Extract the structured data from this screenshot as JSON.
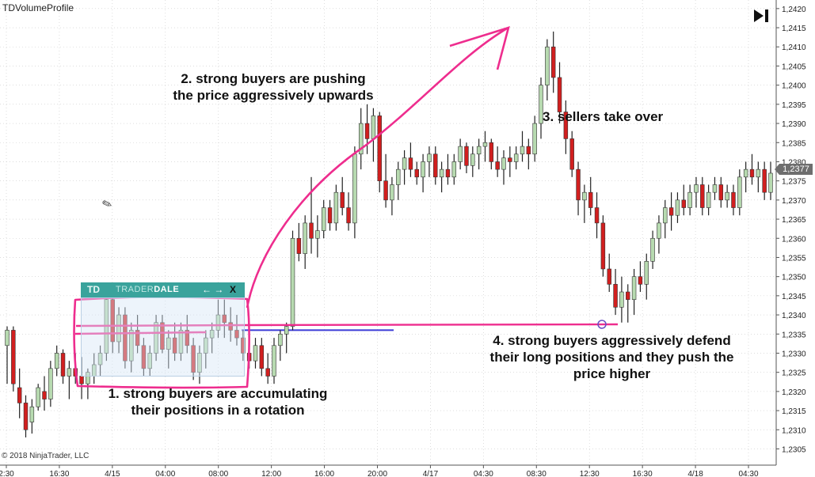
{
  "instrument": "TDVolumeProfile",
  "copyright": "© 2018 NinjaTrader, LLC",
  "current_price": "1,2377",
  "panel": {
    "logo": "TD",
    "brand_a": "TRADER",
    "brand_b": "DALE",
    "arrows": "← →",
    "close": "X"
  },
  "annotations": {
    "a1": "1. strong buyers are accumulating\ntheir positions in a rotation",
    "a2": "2. strong buyers are pushing\nthe price aggressively upwards",
    "a3": "3. sellers take over",
    "a4": "4. strong buyers aggressively defend\ntheir long positions and they push the\nprice higher"
  },
  "colors": {
    "up": "#b7dab0",
    "down": "#d11f1f",
    "wick": "#222222",
    "marker": "#ee2d8e",
    "level": "#3b3bd6",
    "grid": "#c9c9c9"
  },
  "chart_data": {
    "type": "candlestick",
    "x_tick_labels": [
      "2:30",
      "16:30",
      "4/15",
      "04:00",
      "08:00",
      "12:00",
      "16:00",
      "20:00",
      "4/17",
      "04:30",
      "08:30",
      "12:30",
      "16:30",
      "4/18",
      "04:30"
    ],
    "y_tick_labels": [
      "1,2420",
      "1,2415",
      "1,2410",
      "1,2405",
      "1,2400",
      "1,2395",
      "1,2390",
      "1,2385",
      "1,2380",
      "1,2375",
      "1,2370",
      "1,2365",
      "1,2360",
      "1,2355",
      "1,2350",
      "1,2345",
      "1,2340",
      "1,2335",
      "1,2330",
      "1,2325",
      "1,2320",
      "1,2315",
      "1,2310",
      "1,2305"
    ],
    "ylim": [
      1.2302,
      1.2421
    ],
    "grid": true,
    "current_price": 1.2377,
    "support_level": 1.2336,
    "candles": [
      [
        1.2332,
        1.2337,
        1.2322,
        1.2336
      ],
      [
        1.2336,
        1.2337,
        1.232,
        1.2322
      ],
      [
        1.2321,
        1.2326,
        1.2313,
        1.2317
      ],
      [
        1.2317,
        1.2319,
        1.2308,
        1.231
      ],
      [
        1.2312,
        1.2318,
        1.2309,
        1.2316
      ],
      [
        1.2316,
        1.2322,
        1.2315,
        1.2321
      ],
      [
        1.232,
        1.2324,
        1.2315,
        1.2318
      ],
      [
        1.2318,
        1.2328,
        1.2316,
        1.2326
      ],
      [
        1.2326,
        1.2332,
        1.2324,
        1.233
      ],
      [
        1.233,
        1.2331,
        1.2322,
        1.2324
      ],
      [
        1.2324,
        1.2328,
        1.2318,
        1.2326
      ],
      [
        1.2326,
        1.233,
        1.2322,
        1.2324
      ],
      [
        1.2324,
        1.2329,
        1.2318,
        1.2322
      ],
      [
        1.2322,
        1.2326,
        1.2318,
        1.2325
      ],
      [
        1.2324,
        1.233,
        1.2322,
        1.2327
      ],
      [
        1.2327,
        1.2332,
        1.2324,
        1.233
      ],
      [
        1.233,
        1.2346,
        1.2328,
        1.2344
      ],
      [
        1.2344,
        1.2346,
        1.233,
        1.2333
      ],
      [
        1.2333,
        1.2342,
        1.233,
        1.234
      ],
      [
        1.234,
        1.2342,
        1.2326,
        1.2328
      ],
      [
        1.2328,
        1.2338,
        1.2325,
        1.2336
      ],
      [
        1.2336,
        1.234,
        1.233,
        1.2332
      ],
      [
        1.2332,
        1.2334,
        1.2324,
        1.2326
      ],
      [
        1.2326,
        1.2332,
        1.2324,
        1.233
      ],
      [
        1.233,
        1.234,
        1.2328,
        1.2338
      ],
      [
        1.2338,
        1.234,
        1.233,
        1.2331
      ],
      [
        1.2331,
        1.2336,
        1.2326,
        1.2334
      ],
      [
        1.2334,
        1.2338,
        1.2328,
        1.233
      ],
      [
        1.233,
        1.2338,
        1.2328,
        1.2336
      ],
      [
        1.2336,
        1.234,
        1.233,
        1.2332
      ],
      [
        1.2332,
        1.2334,
        1.2323,
        1.2325
      ],
      [
        1.2325,
        1.2332,
        1.2322,
        1.233
      ],
      [
        1.233,
        1.2336,
        1.2326,
        1.2334
      ],
      [
        1.2334,
        1.2338,
        1.233,
        1.2336
      ],
      [
        1.2336,
        1.2344,
        1.2334,
        1.234
      ],
      [
        1.234,
        1.2344,
        1.2334,
        1.2338
      ],
      [
        1.2338,
        1.2342,
        1.2333,
        1.2336
      ],
      [
        1.2336,
        1.234,
        1.2332,
        1.2334
      ],
      [
        1.2334,
        1.2336,
        1.2328,
        1.233
      ],
      [
        1.233,
        1.2333,
        1.2326,
        1.2328
      ],
      [
        1.2328,
        1.2334,
        1.2326,
        1.2332
      ],
      [
        1.2332,
        1.2334,
        1.2324,
        1.2326
      ],
      [
        1.2326,
        1.233,
        1.2322,
        1.2324
      ],
      [
        1.2324,
        1.2334,
        1.2322,
        1.2332
      ],
      [
        1.2332,
        1.2336,
        1.2328,
        1.2335
      ],
      [
        1.2335,
        1.2338,
        1.233,
        1.2337
      ],
      [
        1.2337,
        1.2362,
        1.2336,
        1.236
      ],
      [
        1.236,
        1.2364,
        1.2354,
        1.2356
      ],
      [
        1.2356,
        1.2366,
        1.2352,
        1.2364
      ],
      [
        1.2364,
        1.2376,
        1.2356,
        1.236
      ],
      [
        1.236,
        1.2366,
        1.2355,
        1.2362
      ],
      [
        1.2362,
        1.237,
        1.236,
        1.2368
      ],
      [
        1.2368,
        1.237,
        1.2362,
        1.2364
      ],
      [
        1.2364,
        1.2374,
        1.2362,
        1.2372
      ],
      [
        1.2372,
        1.2376,
        1.2366,
        1.2368
      ],
      [
        1.2368,
        1.2372,
        1.2362,
        1.2364
      ],
      [
        1.2364,
        1.2384,
        1.236,
        1.2382
      ],
      [
        1.2382,
        1.2394,
        1.2378,
        1.239
      ],
      [
        1.239,
        1.2395,
        1.2382,
        1.2386
      ],
      [
        1.2386,
        1.2394,
        1.238,
        1.2392
      ],
      [
        1.2392,
        1.2393,
        1.2372,
        1.2375
      ],
      [
        1.2375,
        1.2382,
        1.2368,
        1.237
      ],
      [
        1.237,
        1.2376,
        1.2366,
        1.2374
      ],
      [
        1.2374,
        1.238,
        1.237,
        1.2378
      ],
      [
        1.2378,
        1.2383,
        1.2374,
        1.2381
      ],
      [
        1.2381,
        1.2385,
        1.2376,
        1.2378
      ],
      [
        1.2378,
        1.238,
        1.2374,
        1.2376
      ],
      [
        1.2376,
        1.2382,
        1.2372,
        1.238
      ],
      [
        1.238,
        1.2384,
        1.2376,
        1.2382
      ],
      [
        1.2382,
        1.2384,
        1.2374,
        1.2376
      ],
      [
        1.2376,
        1.238,
        1.2372,
        1.2378
      ],
      [
        1.2378,
        1.2382,
        1.2374,
        1.2376
      ],
      [
        1.2376,
        1.2382,
        1.2374,
        1.238
      ],
      [
        1.238,
        1.2386,
        1.2378,
        1.2384
      ],
      [
        1.2384,
        1.2385,
        1.2377,
        1.2379
      ],
      [
        1.2379,
        1.2384,
        1.2376,
        1.2382
      ],
      [
        1.2382,
        1.2386,
        1.2378,
        1.2384
      ],
      [
        1.2384,
        1.2388,
        1.238,
        1.2385
      ],
      [
        1.2385,
        1.2386,
        1.2378,
        1.238
      ],
      [
        1.238,
        1.2384,
        1.2376,
        1.2378
      ],
      [
        1.2378,
        1.2383,
        1.2374,
        1.2381
      ],
      [
        1.2381,
        1.2384,
        1.2376,
        1.238
      ],
      [
        1.238,
        1.2384,
        1.2378,
        1.2382
      ],
      [
        1.2382,
        1.2388,
        1.238,
        1.2384
      ],
      [
        1.2384,
        1.2386,
        1.2378,
        1.2382
      ],
      [
        1.2382,
        1.2392,
        1.238,
        1.239
      ],
      [
        1.239,
        1.2402,
        1.2386,
        1.24
      ],
      [
        1.24,
        1.2412,
        1.2396,
        1.241
      ],
      [
        1.241,
        1.2414,
        1.2398,
        1.2402
      ],
      [
        1.2402,
        1.2406,
        1.239,
        1.2393
      ],
      [
        1.2393,
        1.2396,
        1.2382,
        1.2386
      ],
      [
        1.2386,
        1.2388,
        1.2376,
        1.2378
      ],
      [
        1.2378,
        1.238,
        1.2366,
        1.237
      ],
      [
        1.237,
        1.2374,
        1.2364,
        1.2372
      ],
      [
        1.2372,
        1.2376,
        1.2366,
        1.2368
      ],
      [
        1.2368,
        1.2372,
        1.236,
        1.2364
      ],
      [
        1.2364,
        1.2366,
        1.235,
        1.2352
      ],
      [
        1.2352,
        1.2356,
        1.2346,
        1.2348
      ],
      [
        1.2348,
        1.2352,
        1.234,
        1.2342
      ],
      [
        1.2342,
        1.235,
        1.2338,
        1.2346
      ],
      [
        1.2346,
        1.2348,
        1.2338,
        1.2344
      ],
      [
        1.2344,
        1.2352,
        1.234,
        1.235
      ],
      [
        1.235,
        1.2354,
        1.2346,
        1.2348
      ],
      [
        1.2348,
        1.2356,
        1.2344,
        1.2354
      ],
      [
        1.2354,
        1.2362,
        1.2352,
        1.236
      ],
      [
        1.236,
        1.2366,
        1.2356,
        1.2364
      ],
      [
        1.2364,
        1.237,
        1.236,
        1.2368
      ],
      [
        1.2368,
        1.2372,
        1.2362,
        1.2366
      ],
      [
        1.2366,
        1.2372,
        1.2364,
        1.237
      ],
      [
        1.237,
        1.2374,
        1.2366,
        1.2368
      ],
      [
        1.2368,
        1.2374,
        1.2366,
        1.2372
      ],
      [
        1.2372,
        1.2376,
        1.2368,
        1.2374
      ],
      [
        1.2374,
        1.2376,
        1.2366,
        1.2368
      ],
      [
        1.2368,
        1.2374,
        1.2366,
        1.2372
      ],
      [
        1.2372,
        1.2376,
        1.237,
        1.2374
      ],
      [
        1.2374,
        1.2376,
        1.2368,
        1.237
      ],
      [
        1.237,
        1.2374,
        1.2368,
        1.2372
      ],
      [
        1.2372,
        1.2374,
        1.2366,
        1.2368
      ],
      [
        1.2368,
        1.2378,
        1.2366,
        1.2376
      ],
      [
        1.2376,
        1.238,
        1.2372,
        1.2378
      ],
      [
        1.2378,
        1.2382,
        1.2374,
        1.2376
      ],
      [
        1.2376,
        1.238,
        1.2372,
        1.2378
      ],
      [
        1.2378,
        1.238,
        1.237,
        1.2372
      ],
      [
        1.2372,
        1.238,
        1.237,
        1.2377
      ]
    ]
  }
}
